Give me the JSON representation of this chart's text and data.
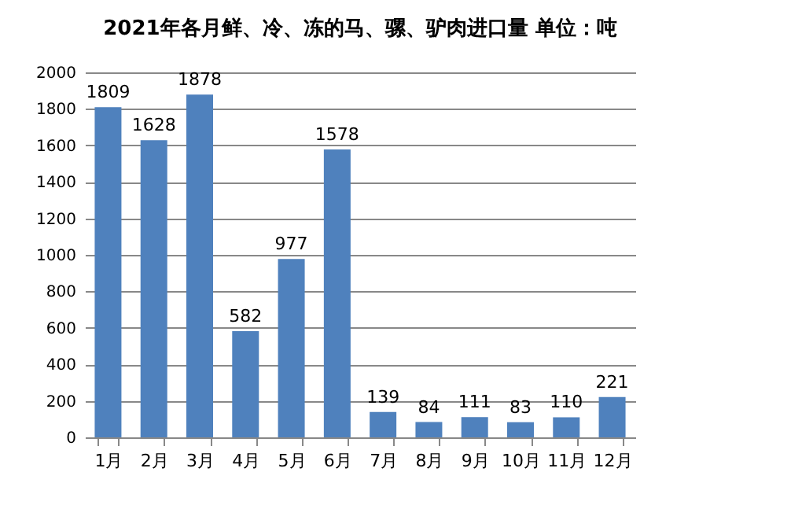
{
  "chart_data": {
    "type": "bar",
    "title": "2021年各月鲜、冷、冻的马、骡、驴肉进口量 单位：吨",
    "categories": [
      "1月",
      "2月",
      "3月",
      "4月",
      "5月",
      "6月",
      "7月",
      "8月",
      "9月",
      "10月",
      "11月",
      "12月"
    ],
    "values": [
      1809,
      1628,
      1878,
      582,
      977,
      1578,
      139,
      84,
      111,
      83,
      110,
      221
    ],
    "color": "#4f81bd",
    "ylim": [
      0,
      2000
    ],
    "yticks": [
      0,
      200,
      400,
      600,
      800,
      1000,
      1200,
      1400,
      1600,
      1800,
      2000
    ],
    "grid": "y",
    "data_labels": true
  }
}
